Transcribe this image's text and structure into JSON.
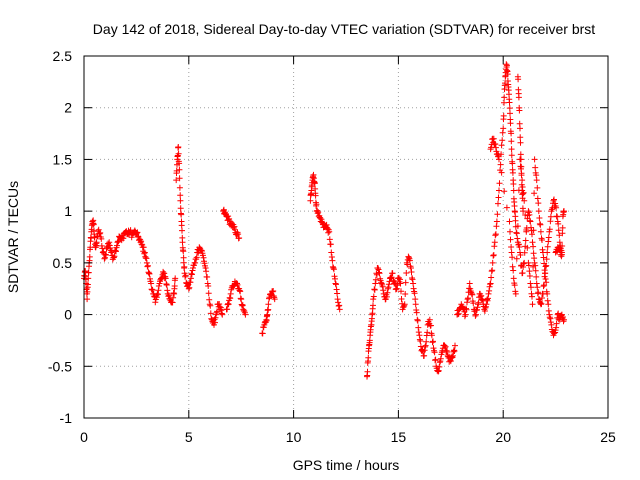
{
  "chart_data": {
    "type": "scatter",
    "title": "Day 142 of 2018, Sidereal Day-to-day VTEC variation (SDTVAR) for receiver brst",
    "xlabel": "GPS time / hours",
    "ylabel": "SDTVAR / TECUs",
    "xlim": [
      0,
      25
    ],
    "ylim": [
      -1,
      2.5
    ],
    "x_ticks": [
      0,
      5,
      10,
      15,
      20,
      25
    ],
    "x_tick_labels": [
      "0",
      "5",
      "10",
      "15",
      "20",
      "25"
    ],
    "y_ticks": [
      -1,
      -0.5,
      0,
      0.5,
      1,
      1.5,
      2,
      2.5
    ],
    "y_tick_labels": [
      "-1",
      "-0.5",
      "0",
      "0.5",
      "1",
      "1.5",
      "2",
      "2.5"
    ],
    "grid": true,
    "marker": "+",
    "marker_color": "#ff0000",
    "series": [
      {
        "name": "SDTVAR",
        "segments": [
          [
            [
              0.0,
              0.35
            ],
            [
              0.05,
              0.42
            ],
            [
              0.1,
              0.3
            ],
            [
              0.15,
              0.15
            ],
            [
              0.2,
              0.35
            ],
            [
              0.25,
              0.5
            ],
            [
              0.3,
              0.65
            ],
            [
              0.35,
              0.8
            ],
            [
              0.4,
              0.9
            ],
            [
              0.45,
              0.88
            ],
            [
              0.5,
              0.75
            ],
            [
              0.55,
              0.65
            ],
            [
              0.6,
              0.7
            ],
            [
              0.7,
              0.82
            ],
            [
              0.8,
              0.75
            ],
            [
              0.9,
              0.6
            ],
            [
              1.0,
              0.55
            ],
            [
              1.1,
              0.65
            ],
            [
              1.2,
              0.7
            ],
            [
              1.3,
              0.6
            ],
            [
              1.4,
              0.55
            ],
            [
              1.5,
              0.62
            ],
            [
              1.6,
              0.7
            ],
            [
              1.7,
              0.75
            ],
            [
              1.8,
              0.72
            ],
            [
              1.9,
              0.78
            ],
            [
              2.0,
              0.8
            ],
            [
              2.1,
              0.78
            ],
            [
              2.2,
              0.8
            ],
            [
              2.3,
              0.77
            ],
            [
              2.4,
              0.8
            ],
            [
              2.5,
              0.78
            ],
            [
              2.6,
              0.75
            ],
            [
              2.7,
              0.7
            ],
            [
              2.8,
              0.65
            ],
            [
              2.9,
              0.6
            ],
            [
              3.0,
              0.5
            ],
            [
              3.1,
              0.4
            ],
            [
              3.2,
              0.3
            ],
            [
              3.3,
              0.2
            ],
            [
              3.4,
              0.12
            ],
            [
              3.5,
              0.2
            ],
            [
              3.6,
              0.3
            ],
            [
              3.7,
              0.35
            ],
            [
              3.8,
              0.4
            ],
            [
              3.9,
              0.35
            ],
            [
              4.0,
              0.2
            ],
            [
              4.1,
              0.15
            ],
            [
              4.2,
              0.12
            ],
            [
              4.3,
              0.2
            ],
            [
              4.35,
              0.35
            ]
          ],
          [
            [
              4.4,
              1.3
            ],
            [
              4.45,
              1.5
            ],
            [
              4.5,
              1.62
            ],
            [
              4.55,
              1.4
            ],
            [
              4.6,
              1.1
            ],
            [
              4.65,
              0.9
            ],
            [
              4.7,
              0.7
            ],
            [
              4.75,
              0.55
            ],
            [
              4.8,
              0.4
            ],
            [
              4.9,
              0.3
            ],
            [
              5.0,
              0.25
            ],
            [
              5.1,
              0.35
            ],
            [
              5.2,
              0.45
            ],
            [
              5.3,
              0.5
            ],
            [
              5.4,
              0.6
            ],
            [
              5.5,
              0.65
            ],
            [
              5.6,
              0.62
            ],
            [
              5.7,
              0.55
            ],
            [
              5.8,
              0.45
            ],
            [
              5.9,
              0.3
            ],
            [
              6.0,
              0.1
            ],
            [
              6.1,
              -0.05
            ],
            [
              6.2,
              -0.1
            ],
            [
              6.3,
              0.0
            ],
            [
              6.4,
              0.1
            ],
            [
              6.5,
              0.05
            ],
            [
              6.6,
              0.0
            ]
          ],
          [
            [
              6.65,
              1.0
            ],
            [
              6.7,
              0.98
            ],
            [
              6.8,
              0.95
            ],
            [
              6.9,
              0.92
            ],
            [
              7.0,
              0.88
            ],
            [
              7.1,
              0.85
            ],
            [
              7.2,
              0.82
            ],
            [
              7.3,
              0.78
            ],
            [
              7.4,
              0.74
            ]
          ],
          [
            [
              6.8,
              0.05
            ],
            [
              6.9,
              0.1
            ],
            [
              7.0,
              0.2
            ],
            [
              7.1,
              0.28
            ],
            [
              7.2,
              0.32
            ],
            [
              7.3,
              0.3
            ],
            [
              7.4,
              0.25
            ],
            [
              7.5,
              0.15
            ],
            [
              7.6,
              0.05
            ],
            [
              7.7,
              0.0
            ]
          ],
          [
            [
              8.5,
              -0.18
            ],
            [
              8.6,
              -0.1
            ],
            [
              8.7,
              -0.05
            ],
            [
              8.75,
              0.0
            ],
            [
              8.8,
              0.1
            ],
            [
              8.9,
              0.2
            ],
            [
              9.0,
              0.22
            ],
            [
              9.1,
              0.15
            ]
          ],
          [
            [
              10.8,
              1.1
            ],
            [
              10.85,
              1.2
            ],
            [
              10.9,
              1.3
            ],
            [
              10.95,
              1.35
            ],
            [
              11.0,
              1.28
            ],
            [
              11.05,
              1.15
            ],
            [
              11.1,
              1.0
            ],
            [
              11.2,
              0.95
            ],
            [
              11.3,
              0.9
            ],
            [
              11.4,
              0.87
            ],
            [
              11.5,
              0.85
            ],
            [
              11.6,
              0.84
            ],
            [
              11.7,
              0.8
            ],
            [
              11.8,
              0.6
            ],
            [
              11.9,
              0.45
            ],
            [
              12.0,
              0.3
            ],
            [
              12.1,
              0.15
            ],
            [
              12.2,
              0.05
            ]
          ],
          [
            [
              13.5,
              -0.6
            ],
            [
              13.55,
              -0.45
            ],
            [
              13.6,
              -0.3
            ],
            [
              13.65,
              -0.2
            ],
            [
              13.7,
              -0.1
            ],
            [
              13.75,
              0.0
            ],
            [
              13.8,
              0.15
            ],
            [
              13.9,
              0.3
            ],
            [
              14.0,
              0.45
            ],
            [
              14.1,
              0.4
            ],
            [
              14.2,
              0.3
            ],
            [
              14.3,
              0.2
            ],
            [
              14.4,
              0.15
            ],
            [
              14.5,
              0.25
            ],
            [
              14.6,
              0.35
            ],
            [
              14.7,
              0.4
            ],
            [
              14.8,
              0.3
            ],
            [
              14.9,
              0.25
            ],
            [
              15.0,
              0.35
            ],
            [
              15.1,
              0.3
            ],
            [
              15.2,
              0.05
            ],
            [
              15.3,
              0.1
            ],
            [
              15.4,
              0.5
            ],
            [
              15.5,
              0.55
            ],
            [
              15.6,
              0.45
            ],
            [
              15.7,
              0.3
            ],
            [
              15.8,
              0.15
            ],
            [
              15.9,
              -0.05
            ],
            [
              16.0,
              -0.2
            ],
            [
              16.1,
              -0.35
            ],
            [
              16.2,
              -0.4
            ],
            [
              16.3,
              -0.3
            ],
            [
              16.4,
              -0.1
            ],
            [
              16.5,
              -0.05
            ],
            [
              16.6,
              -0.2
            ],
            [
              16.7,
              -0.35
            ],
            [
              16.8,
              -0.5
            ],
            [
              16.9,
              -0.55
            ],
            [
              17.0,
              -0.45
            ],
            [
              17.1,
              -0.35
            ],
            [
              17.2,
              -0.3
            ],
            [
              17.3,
              -0.35
            ],
            [
              17.4,
              -0.42
            ],
            [
              17.5,
              -0.45
            ],
            [
              17.6,
              -0.4
            ],
            [
              17.7,
              -0.3
            ]
          ],
          [
            [
              17.8,
              0.0
            ],
            [
              17.9,
              0.05
            ],
            [
              18.0,
              0.1
            ],
            [
              18.1,
              0.05
            ],
            [
              18.2,
              0.0
            ],
            [
              18.3,
              0.15
            ],
            [
              18.4,
              0.3
            ],
            [
              18.5,
              0.2
            ],
            [
              18.6,
              0.05
            ],
            [
              18.7,
              0.0
            ],
            [
              18.8,
              0.1
            ],
            [
              18.9,
              0.2
            ],
            [
              19.0,
              0.15
            ],
            [
              19.1,
              0.05
            ],
            [
              19.2,
              0.1
            ],
            [
              19.3,
              0.2
            ],
            [
              19.4,
              0.3
            ],
            [
              19.5,
              0.5
            ],
            [
              19.6,
              0.7
            ],
            [
              19.7,
              0.9
            ],
            [
              19.8,
              1.2
            ],
            [
              19.9,
              1.55
            ],
            [
              20.0,
              1.8
            ],
            [
              20.05,
              2.1
            ],
            [
              20.1,
              2.3
            ],
            [
              20.15,
              2.42
            ],
            [
              20.2,
              2.35
            ],
            [
              20.25,
              2.2
            ],
            [
              20.3,
              2.05
            ],
            [
              20.35,
              1.85
            ],
            [
              20.4,
              1.6
            ],
            [
              20.45,
              1.4
            ],
            [
              20.5,
              1.2
            ],
            [
              20.55,
              1.0
            ],
            [
              20.6,
              0.85
            ],
            [
              20.7,
              0.7
            ],
            [
              20.8,
              0.6
            ],
            [
              20.9,
              0.4
            ],
            [
              21.0,
              0.5
            ],
            [
              21.1,
              0.8
            ],
            [
              21.2,
              1.0
            ],
            [
              21.3,
              0.9
            ],
            [
              21.4,
              0.7
            ],
            [
              21.5,
              0.5
            ],
            [
              21.6,
              0.3
            ],
            [
              21.7,
              0.15
            ],
            [
              21.8,
              0.1
            ],
            [
              21.9,
              0.2
            ],
            [
              22.0,
              0.4
            ],
            [
              22.1,
              0.6
            ],
            [
              22.2,
              0.8
            ],
            [
              22.3,
              1.0
            ],
            [
              22.4,
              1.1
            ],
            [
              22.5,
              1.05
            ],
            [
              22.6,
              0.9
            ],
            [
              22.7,
              0.7
            ],
            [
              22.8,
              0.6
            ]
          ],
          [
            [
              19.4,
              1.6
            ],
            [
              19.5,
              1.7
            ],
            [
              19.6,
              1.65
            ],
            [
              19.7,
              1.55
            ],
            [
              19.8,
              1.5
            ],
            [
              20.3,
              0.9
            ],
            [
              20.4,
              0.6
            ],
            [
              20.5,
              0.35
            ],
            [
              20.6,
              0.2
            ],
            [
              20.8,
              1.5
            ],
            [
              20.9,
              1.3
            ],
            [
              21.0,
              1.1
            ],
            [
              21.2,
              0.5
            ],
            [
              21.3,
              0.3
            ],
            [
              21.4,
              0.1
            ],
            [
              21.5,
              1.5
            ],
            [
              21.6,
              1.3
            ],
            [
              21.7,
              1.0
            ],
            [
              21.8,
              0.8
            ],
            [
              21.9,
              0.6
            ],
            [
              22.0,
              0.4
            ],
            [
              22.1,
              0.2
            ],
            [
              22.2,
              0.0
            ],
            [
              22.3,
              -0.1
            ],
            [
              22.4,
              -0.2
            ],
            [
              22.5,
              -0.15
            ],
            [
              22.6,
              0.0
            ],
            [
              22.7,
              -0.05
            ],
            [
              22.8,
              0.0
            ],
            [
              22.9,
              -0.05
            ]
          ],
          [
            [
              20.7,
              2.3
            ],
            [
              20.75,
              2.1
            ],
            [
              20.8,
              1.8
            ],
            [
              20.85,
              1.5
            ],
            [
              20.9,
              1.2
            ],
            [
              20.95,
              1.0
            ]
          ],
          [
            [
              22.5,
              0.6
            ],
            [
              22.6,
              0.65
            ],
            [
              22.7,
              0.62
            ],
            [
              22.8,
              0.58
            ],
            [
              22.85,
              0.95
            ],
            [
              22.9,
              1.0
            ]
          ]
        ]
      }
    ]
  }
}
